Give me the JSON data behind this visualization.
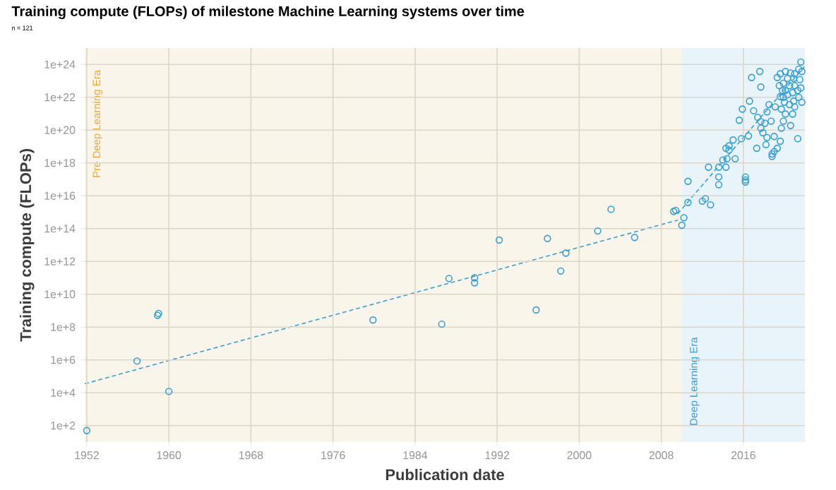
{
  "chart_data": {
    "type": "scatter",
    "title": "Training compute (FLOPs) of milestone Machine Learning systems over time",
    "subtitle": "n = 121",
    "xlabel": "Publication date",
    "ylabel": "Training compute (FLOPs)",
    "xlim": [
      1951.8,
      2022
    ],
    "ylim": [
      10.0,
      1e+25
    ],
    "xticks": [
      1952,
      1960,
      1968,
      1976,
      1984,
      1992,
      2000,
      2008,
      2016
    ],
    "yticks": [
      {
        "value": 100.0,
        "label": "1e+2"
      },
      {
        "value": 10000.0,
        "label": "1e+4"
      },
      {
        "value": 1000000.0,
        "label": "1e+6"
      },
      {
        "value": 100000000.0,
        "label": "1e+8"
      },
      {
        "value": 10000000000.0,
        "label": "1e+10"
      },
      {
        "value": 1000000000000.0,
        "label": "1e+12"
      },
      {
        "value": 100000000000000.0,
        "label": "1e+14"
      },
      {
        "value": 1e+16,
        "label": "1e+16"
      },
      {
        "value": 1e+18,
        "label": "1e+18"
      },
      {
        "value": 1e+20,
        "label": "1e+20"
      },
      {
        "value": 1e+22,
        "label": "1e+22"
      },
      {
        "value": 1e+24,
        "label": "1e+24"
      }
    ],
    "log": "y",
    "grid": true,
    "marker": "circle",
    "bands": [
      {
        "axis": "x",
        "from": 1951.8,
        "to": 2010,
        "label": "Pre Deep Learning Era",
        "color": "#faf5ea"
      },
      {
        "axis": "x",
        "from": 2010,
        "to": 2022,
        "label": "Deep Learning Era",
        "color": "#e8f4fa"
      }
    ],
    "series": [
      {
        "color": "#3a9fd0",
        "x": [
          1952,
          1956.9,
          1959.0,
          1958.9,
          1960,
          1979.9,
          1986.6,
          1987.3,
          1989.8,
          1989.8,
          1992.2,
          1995.8,
          1996.9,
          1998.2,
          1998.7,
          2001.8,
          2003.1,
          2005.4,
          2009.2,
          2009.4,
          2010.0,
          2010.2,
          2010.6,
          2010.6,
          2012.0,
          2012.3,
          2012.8,
          2012.6,
          2013.6,
          2013.6,
          2013.6,
          2014.0,
          2014.3,
          2014.4,
          2014.6,
          2014.3,
          2014.6,
          2015.0,
          2015.2,
          2015.8,
          2015.6,
          2015.9,
          2016.2,
          2016.2,
          2016.2,
          2016.5,
          2016.6,
          2016.8,
          2017.0,
          2017.3,
          2017.4,
          2017.6,
          2017.7,
          2017.7,
          2017.7,
          2017.9,
          2018.1,
          2018.2,
          2018.3,
          2018.3,
          2018.5,
          2018.7,
          2018.8,
          2018.8,
          2019.0,
          2019.0,
          2019.1,
          2019.3,
          2019.5,
          2019.6,
          2019.6,
          2019.6,
          2019.7,
          2019.7,
          2019.9,
          2019.9,
          2019.9,
          2020.0,
          2020.1,
          2020.1,
          2020.1,
          2020.3,
          2020.3,
          2020.5,
          2020.5,
          2020.6,
          2020.6,
          2020.8,
          2020.8,
          2020.9,
          2020.9,
          2021.0,
          2021.0,
          2021.0,
          2021.3,
          2021.3,
          2021.4,
          2021.4,
          2021.5,
          2021.6,
          2021.6,
          2021.7,
          2021.7,
          2019.3,
          2019.8
        ],
        "values": [
          50.0,
          850000.0,
          680000000.0,
          520000000.0,
          12000.0,
          270000000.0,
          150000000.0,
          91000000000.0,
          100000000000.0,
          50000000000.0,
          20000000000000.0,
          1100000000.0,
          25000000000000.0,
          260000000000.0,
          3200000000000.0,
          72000000000000.0,
          1500000000000000.0,
          29000000000000.0,
          1100000000000000.0,
          1300000000000000.0,
          160000000000000.0,
          460000000000000.0,
          7.6e+16,
          3900000000000000.0,
          4700000000000000.0,
          6600000000000000.0,
          2800000000000000.0,
          5.5e+17,
          1.4e+17,
          4.7e+16,
          5.5e+17,
          1.5e+18,
          5.5e+17,
          1.8e+18,
          6e+18,
          7.8e+18,
          1.1e+19,
          2.5e+19,
          1.8e+18,
          3e+19,
          4e+20,
          1.9e+21,
          9.1e+16,
          1.4e+17,
          6.9e+16,
          4.4e+19,
          5.8e+21,
          1.6e+23,
          1.5e+21,
          7.8e+18,
          6e+20,
          3.7e+23,
          4.2e+22,
          1.3e+20,
          3.3e+20,
          6.9e+19,
          2.6e+20,
          1.3e+19,
          1.3e+21,
          3.5e+19,
          3.6e+21,
          3.5e+20,
          3.5e+18,
          2.5e+18,
          4.9e+18,
          4.1e+19,
          2.6e+21,
          7.8e+18,
          5.1e+22,
          2.7e+23,
          1.1e+22,
          2.1e+19,
          1.3e+20,
          1.9e+21,
          7.1e+22,
          9.8e+21,
          3.5e+20,
          5e+21,
          3.7e+23,
          2.6e+22,
          9.5e+20,
          1.4e+23,
          1.4e+22,
          5.1e+22,
          3.6e+21,
          1.9e+20,
          3e+23,
          1.9e+22,
          9.5e+20,
          1.4e+23,
          5.8e+21,
          5.1e+22,
          2.7e+23,
          2.6e+21,
          3e+19,
          2.6e+22,
          5.2e+23,
          9.8e+21,
          1.2e+23,
          1.4e+24,
          3.7e+22,
          3.7e+23,
          5e+21,
          1.6e+23,
          2.6e+22
        ]
      },
      {
        "type": "line",
        "color": "#3a9fd0",
        "line_style": "dashed",
        "marker": "none",
        "x": [
          1951.8,
          2009.6
        ],
        "values": [
          35000.0,
          330000000000000.0
        ]
      },
      {
        "type": "line",
        "color": "#3a9fd0",
        "line_style": "dashed",
        "marker": "none",
        "x": [
          2009.6,
          2022
        ],
        "values": [
          800000000000000.0,
          8e+23
        ]
      }
    ]
  }
}
